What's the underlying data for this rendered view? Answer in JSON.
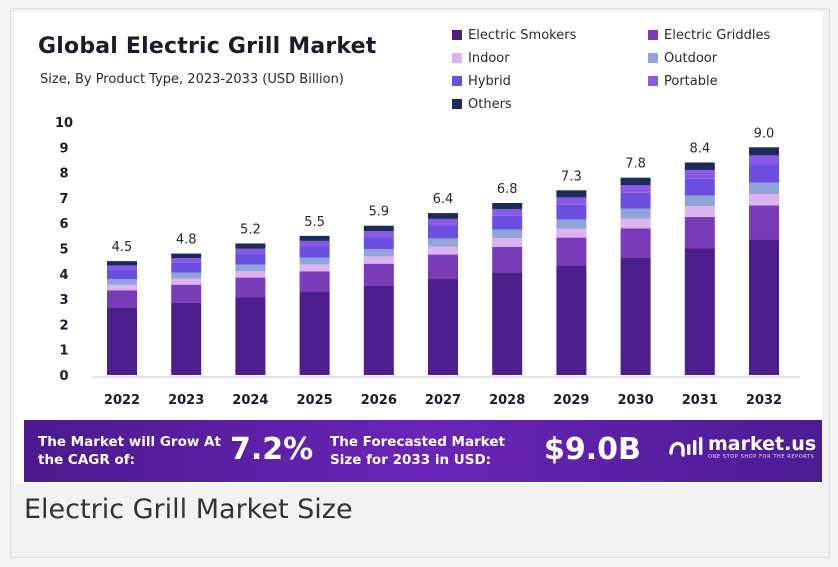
{
  "caption": "Electric Grill Market Size",
  "banner": {
    "cagr_label": "The Market will Grow At the CAGR of:",
    "cagr_value": "7.2%",
    "forecast_label": "The Forecasted Market Size for 2033 in USD:",
    "forecast_value": "$9.0B",
    "brand_name": "market.us",
    "brand_tagline": "ONE STOP SHOP FOR THE REPORTS"
  },
  "chart_data": {
    "type": "bar",
    "stacked": true,
    "title": "Global Electric Grill Market",
    "subtitle": "Size, By Product Type, 2023-2033 (USD Billion)",
    "xlabel": "",
    "ylabel": "",
    "ylim": [
      0,
      10
    ],
    "yticks": [
      0,
      1,
      2,
      3,
      4,
      5,
      6,
      7,
      8,
      9,
      10
    ],
    "grid": false,
    "legend_position": "top-right",
    "categories": [
      "2022",
      "2023",
      "2024",
      "2025",
      "2026",
      "2027",
      "2028",
      "2029",
      "2030",
      "2031",
      "2032"
    ],
    "totals": [
      4.5,
      4.8,
      5.2,
      5.5,
      5.9,
      6.4,
      6.8,
      7.3,
      7.8,
      8.4,
      9.0
    ],
    "total_labels": [
      "4.5",
      "4.8",
      "5.2",
      "5.5",
      "5.9",
      "6.4",
      "6.8",
      "7.3",
      "7.8",
      "8.4",
      "9.0"
    ],
    "series": [
      {
        "name": "Electric Smokers",
        "color": "#4b1e8c",
        "values": [
          2.68,
          2.86,
          3.08,
          3.28,
          3.52,
          3.81,
          4.06,
          4.34,
          4.64,
          5.0,
          5.36
        ]
      },
      {
        "name": "Electric Griddles",
        "color": "#7a3bb8",
        "values": [
          0.67,
          0.71,
          0.77,
          0.82,
          0.88,
          0.95,
          1.01,
          1.09,
          1.16,
          1.25,
          1.34
        ]
      },
      {
        "name": "Indoor",
        "color": "#dcb3ee",
        "values": [
          0.22,
          0.24,
          0.26,
          0.27,
          0.29,
          0.32,
          0.34,
          0.36,
          0.39,
          0.42,
          0.45
        ]
      },
      {
        "name": "Outdoor",
        "color": "#8fa4d8",
        "values": [
          0.22,
          0.24,
          0.26,
          0.27,
          0.29,
          0.32,
          0.34,
          0.36,
          0.39,
          0.42,
          0.45
        ]
      },
      {
        "name": "Hybrid",
        "color": "#6a4fe0",
        "values": [
          0.36,
          0.38,
          0.41,
          0.44,
          0.47,
          0.51,
          0.54,
          0.58,
          0.62,
          0.67,
          0.72
        ]
      },
      {
        "name": "Portable",
        "color": "#8a5ae6",
        "values": [
          0.18,
          0.19,
          0.21,
          0.22,
          0.24,
          0.26,
          0.27,
          0.29,
          0.31,
          0.34,
          0.36
        ]
      },
      {
        "name": "Others",
        "color": "#1f2a5c",
        "values": [
          0.17,
          0.18,
          0.21,
          0.2,
          0.21,
          0.23,
          0.24,
          0.28,
          0.29,
          0.3,
          0.32
        ]
      }
    ]
  }
}
